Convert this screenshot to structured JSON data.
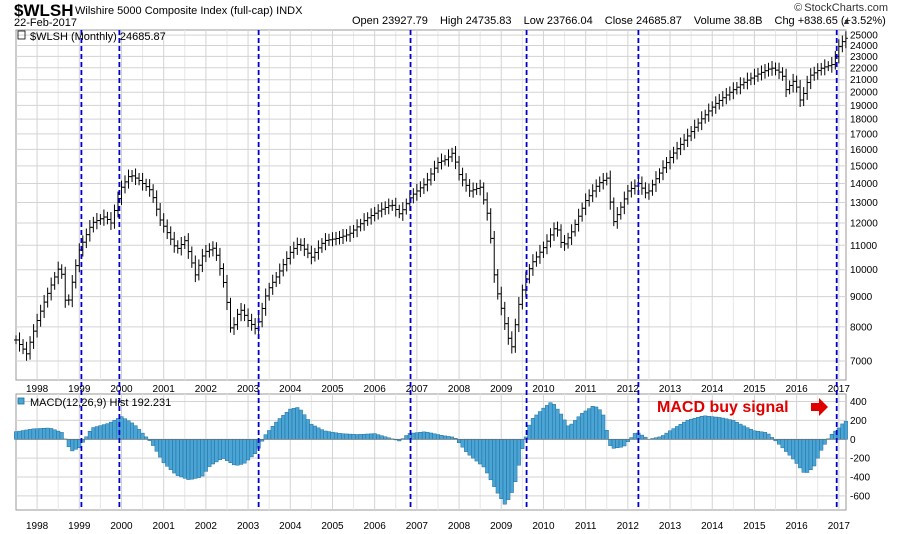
{
  "header": {
    "symbol": "$WLSH",
    "name": "Wilshire 5000 Composite Index (full-cap)",
    "exchange": "INDX",
    "date": "22-Feb-2017",
    "brand": "StockCharts.com",
    "copyright": "©",
    "quote": {
      "open_label": "Open",
      "open": "23927.79",
      "high_label": "High",
      "high": "24735.83",
      "low_label": "Low",
      "low": "23766.04",
      "close_label": "Close",
      "close": "24685.87",
      "volume_label": "Volume",
      "volume": "38.8B",
      "chg_label": "Chg",
      "chg": "+838.65 (+3.52%)"
    },
    "up_arrow_icon": "triangle-up-icon"
  },
  "colors": {
    "price_bar": "#000000",
    "macd_fill": "#4aa5d6",
    "macd_stroke": "#1f6f9a",
    "vline": "#0000cc",
    "grid": "#d3d3d3",
    "annotation": "#e00000"
  },
  "chart_data": [
    {
      "type": "ohlc",
      "legend": "$WLSH (Monthly)",
      "legend_value": "24685.87",
      "scale": "log",
      "ylim": [
        6500,
        25500
      ],
      "yticks": [
        7000,
        8000,
        9000,
        10000,
        11000,
        12000,
        13000,
        14000,
        15000,
        16000,
        17000,
        18000,
        19000,
        20000,
        21000,
        22000,
        23000,
        24000,
        25000
      ],
      "xlim": [
        1997.5,
        2017.17
      ],
      "xticks": [
        "1998",
        "1999",
        "2000",
        "2001",
        "2002",
        "2003",
        "2004",
        "2005",
        "2006",
        "2007",
        "2008",
        "2009",
        "2010",
        "2011",
        "2012",
        "2013",
        "2014",
        "2015",
        "2016",
        "2017"
      ],
      "xtick_positions": [
        1998,
        1999,
        2000,
        2001,
        2002,
        2003,
        2004,
        2005,
        2006,
        2007,
        2008,
        2009,
        2010,
        2011,
        2012,
        2013,
        2014,
        2015,
        2016,
        2017
      ],
      "series_anchors": [
        [
          1997.5,
          7600
        ],
        [
          1997.75,
          7200
        ],
        [
          1998.0,
          8200
        ],
        [
          1998.3,
          9300
        ],
        [
          1998.55,
          10200
        ],
        [
          1998.7,
          8500
        ],
        [
          1999.0,
          10800
        ],
        [
          1999.3,
          12000
        ],
        [
          1999.6,
          12300
        ],
        [
          1999.75,
          12000
        ],
        [
          2000.0,
          13800
        ],
        [
          2000.2,
          14500
        ],
        [
          2000.4,
          14200
        ],
        [
          2000.7,
          13600
        ],
        [
          2000.9,
          12200
        ],
        [
          2001.1,
          11500
        ],
        [
          2001.3,
          10800
        ],
        [
          2001.5,
          11200
        ],
        [
          2001.75,
          9800
        ],
        [
          2001.95,
          10700
        ],
        [
          2002.2,
          10900
        ],
        [
          2002.45,
          9300
        ],
        [
          2002.6,
          7800
        ],
        [
          2002.8,
          8600
        ],
        [
          2003.0,
          8200
        ],
        [
          2003.2,
          7900
        ],
        [
          2003.45,
          9200
        ],
        [
          2003.7,
          9800
        ],
        [
          2004.0,
          10700
        ],
        [
          2004.2,
          11100
        ],
        [
          2004.5,
          10500
        ],
        [
          2004.8,
          11200
        ],
        [
          2005.1,
          11300
        ],
        [
          2005.4,
          11500
        ],
        [
          2005.8,
          12200
        ],
        [
          2006.1,
          12600
        ],
        [
          2006.4,
          12900
        ],
        [
          2006.6,
          12400
        ],
        [
          2006.85,
          13300
        ],
        [
          2007.2,
          14000
        ],
        [
          2007.5,
          15200
        ],
        [
          2007.7,
          15400
        ],
        [
          2007.85,
          15800
        ],
        [
          2008.0,
          14500
        ],
        [
          2008.25,
          13600
        ],
        [
          2008.5,
          13800
        ],
        [
          2008.7,
          12200
        ],
        [
          2008.85,
          9500
        ],
        [
          2009.0,
          8600
        ],
        [
          2009.15,
          7700
        ],
        [
          2009.25,
          7400
        ],
        [
          2009.45,
          9000
        ],
        [
          2009.7,
          10200
        ],
        [
          2010.0,
          10900
        ],
        [
          2010.3,
          11900
        ],
        [
          2010.45,
          10900
        ],
        [
          2010.7,
          11700
        ],
        [
          2011.0,
          13100
        ],
        [
          2011.3,
          14000
        ],
        [
          2011.5,
          14300
        ],
        [
          2011.65,
          12000
        ],
        [
          2011.8,
          12600
        ],
        [
          2012.0,
          13600
        ],
        [
          2012.25,
          14000
        ],
        [
          2012.45,
          13400
        ],
        [
          2012.7,
          14400
        ],
        [
          2013.0,
          15500
        ],
        [
          2013.4,
          16800
        ],
        [
          2013.8,
          18200
        ],
        [
          2014.1,
          19200
        ],
        [
          2014.5,
          20200
        ],
        [
          2014.8,
          20900
        ],
        [
          2015.1,
          21500
        ],
        [
          2015.4,
          22000
        ],
        [
          2015.65,
          21500
        ],
        [
          2015.75,
          20200
        ],
        [
          2015.95,
          21000
        ],
        [
          2016.1,
          19200
        ],
        [
          2016.3,
          21300
        ],
        [
          2016.6,
          22000
        ],
        [
          2016.85,
          22300
        ],
        [
          2017.0,
          23900
        ],
        [
          2017.14,
          24686
        ]
      ],
      "vertical_markers": [
        1999.05,
        1999.95,
        2003.25,
        2006.85,
        2009.6,
        2012.25,
        2016.95
      ]
    },
    {
      "type": "bar",
      "legend": "MACD(12,26,9) Hist",
      "legend_value": "192.231",
      "ylim": [
        -750,
        480
      ],
      "yticks": [
        -600,
        -400,
        -200,
        0,
        200,
        400
      ],
      "xlim": [
        1997.5,
        2017.17
      ],
      "xticks": [
        "1998",
        "1999",
        "2000",
        "2001",
        "2002",
        "2003",
        "2004",
        "2005",
        "2006",
        "2007",
        "2008",
        "2009",
        "2010",
        "2011",
        "2012",
        "2013",
        "2014",
        "2015",
        "2016",
        "2017"
      ],
      "series_anchors": [
        [
          1997.5,
          80
        ],
        [
          1997.9,
          110
        ],
        [
          1998.3,
          120
        ],
        [
          1998.6,
          70
        ],
        [
          1998.8,
          -130
        ],
        [
          1999.0,
          -90
        ],
        [
          1999.3,
          120
        ],
        [
          1999.7,
          170
        ],
        [
          2000.0,
          240
        ],
        [
          2000.3,
          160
        ],
        [
          2000.7,
          -30
        ],
        [
          2001.0,
          -250
        ],
        [
          2001.3,
          -380
        ],
        [
          2001.6,
          -430
        ],
        [
          2001.9,
          -400
        ],
        [
          2002.1,
          -280
        ],
        [
          2002.4,
          -200
        ],
        [
          2002.7,
          -280
        ],
        [
          2002.9,
          -260
        ],
        [
          2003.2,
          -140
        ],
        [
          2003.4,
          40
        ],
        [
          2003.7,
          200
        ],
        [
          2004.0,
          320
        ],
        [
          2004.2,
          340
        ],
        [
          2004.5,
          160
        ],
        [
          2004.8,
          90
        ],
        [
          2005.2,
          60
        ],
        [
          2005.6,
          50
        ],
        [
          2006.0,
          60
        ],
        [
          2006.3,
          20
        ],
        [
          2006.6,
          -20
        ],
        [
          2006.8,
          60
        ],
        [
          2007.2,
          80
        ],
        [
          2007.6,
          40
        ],
        [
          2007.9,
          20
        ],
        [
          2008.2,
          -150
        ],
        [
          2008.6,
          -300
        ],
        [
          2008.9,
          -560
        ],
        [
          2009.1,
          -700
        ],
        [
          2009.3,
          -520
        ],
        [
          2009.5,
          -100
        ],
        [
          2009.7,
          200
        ],
        [
          2010.0,
          330
        ],
        [
          2010.2,
          400
        ],
        [
          2010.4,
          280
        ],
        [
          2010.6,
          130
        ],
        [
          2010.9,
          270
        ],
        [
          2011.2,
          360
        ],
        [
          2011.4,
          290
        ],
        [
          2011.6,
          -100
        ],
        [
          2011.9,
          -80
        ],
        [
          2012.2,
          80
        ],
        [
          2012.5,
          0
        ],
        [
          2012.8,
          30
        ],
        [
          2013.0,
          90
        ],
        [
          2013.4,
          200
        ],
        [
          2013.8,
          250
        ],
        [
          2014.2,
          230
        ],
        [
          2014.5,
          200
        ],
        [
          2014.8,
          130
        ],
        [
          2015.0,
          90
        ],
        [
          2015.3,
          70
        ],
        [
          2015.6,
          -60
        ],
        [
          2015.9,
          -200
        ],
        [
          2016.2,
          -370
        ],
        [
          2016.4,
          -300
        ],
        [
          2016.6,
          -100
        ],
        [
          2016.8,
          40
        ],
        [
          2017.0,
          120
        ],
        [
          2017.14,
          192
        ]
      ],
      "vertical_markers": [
        1999.05,
        1999.95,
        2003.25,
        2006.85,
        2009.6,
        2012.25,
        2016.95
      ],
      "annotation": "MACD buy signal",
      "annotation_icon": "arrow-right-icon"
    }
  ]
}
